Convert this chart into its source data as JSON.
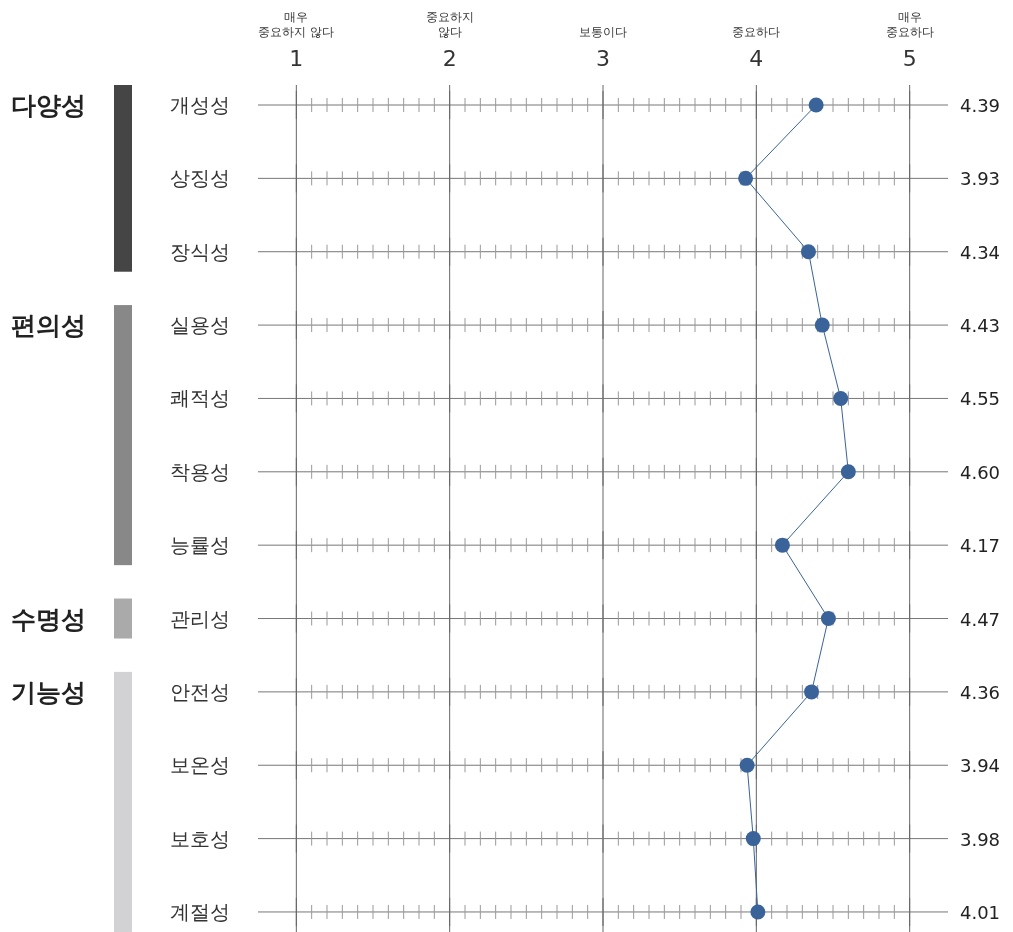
{
  "chart_data": {
    "type": "line",
    "categories": [
      "개성성",
      "상징성",
      "장식성",
      "실용성",
      "쾌적성",
      "착용성",
      "능률성",
      "관리성",
      "안전성",
      "보온성",
      "보호성",
      "계절성"
    ],
    "series": [
      {
        "color": "#3a6399",
        "values": [
          4.39,
          3.93,
          4.34,
          4.43,
          4.55,
          4.6,
          4.17,
          4.47,
          4.36,
          3.94,
          3.98,
          4.01
        ]
      }
    ],
    "orientation": "horizontal",
    "marker": "circle",
    "xlim": [
      0.75,
      5.25
    ],
    "xticks": [
      1,
      2,
      3,
      4,
      5
    ],
    "annotations": [
      "매우\n중요하지 않다",
      "중요하지\n않다",
      "보통이다",
      "중요하다",
      "매우\n중요하다",
      "다양성",
      "편의성",
      "수명성",
      "기능성"
    ],
    "grid": true,
    "value_labels": [
      "4.39",
      "3.93",
      "4.34",
      "4.43",
      "4.55",
      "4.60",
      "4.17",
      "4.47",
      "4.36",
      "3.94",
      "3.98",
      "4.01"
    ]
  }
}
